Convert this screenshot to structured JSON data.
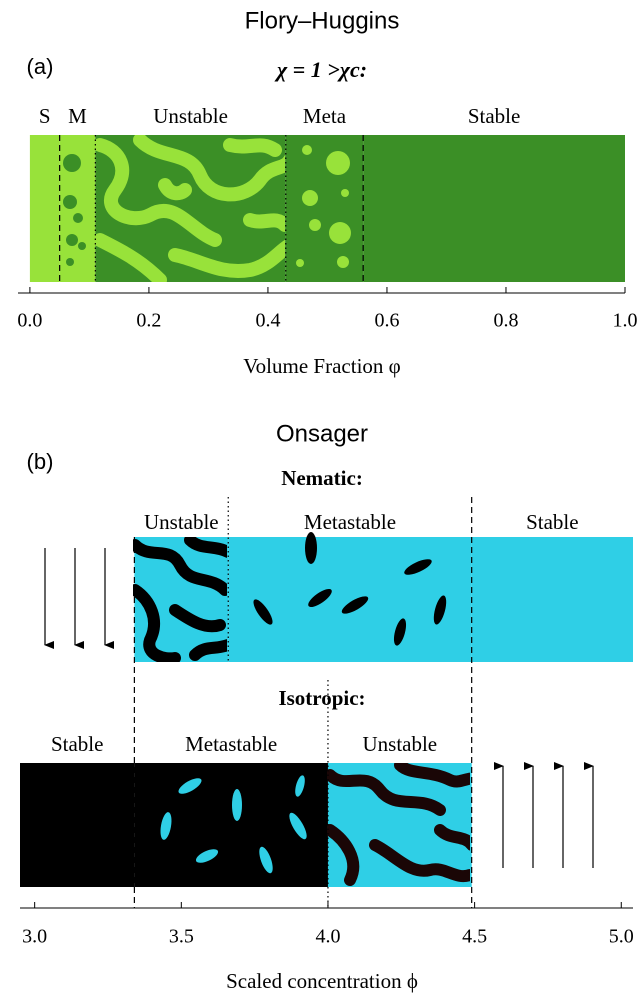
{
  "chart_data": [
    {
      "type": "phase",
      "title": "Flory–Huggins",
      "panel_label": "(a)",
      "subtitle": "χ = 1 >χc:",
      "x_label": "Volume Fraction φ",
      "xlim": [
        -0.02,
        1.0
      ],
      "xticks": [
        {
          "value": 0,
          "label": "0.0"
        },
        0.2,
        0.4,
        0.6,
        0.8,
        {
          "value": 1,
          "label": "1.0"
        }
      ],
      "rows": [
        {
          "regions": [
            {
              "label": "S",
              "range": [
                0,
                0.05
              ],
              "color": "#98e23a"
            },
            {
              "label": "M",
              "range": [
                0.05,
                0.11
              ],
              "color": "#98e23a"
            },
            {
              "label": "Unstable",
              "range": [
                0.11,
                0.43
              ],
              "color": "#3b8f26"
            },
            {
              "label": "Meta",
              "range": [
                0.43,
                0.56
              ],
              "color": "#3b8f26"
            },
            {
              "label": "Stable",
              "range": [
                0.56,
                1.0
              ],
              "color": "#3b8f26"
            }
          ]
        }
      ],
      "boundaries": [
        {
          "value": 0.05,
          "style": "dashed"
        },
        {
          "value": 0.11,
          "style": "dotted"
        },
        {
          "value": 0.43,
          "style": "dotted"
        },
        {
          "value": 0.56,
          "style": "dashed"
        }
      ]
    },
    {
      "type": "phase",
      "title": "Onsager",
      "panel_label": "(b)",
      "x_label": "Scaled concentration ϕ",
      "xlim": [
        2.95,
        5.04
      ],
      "xticks": [
        {
          "value": 3,
          "label": "3.0"
        },
        3.5,
        {
          "value": 4,
          "label": "4.0"
        },
        4.5,
        {
          "value": 5,
          "label": "5.0"
        }
      ],
      "rows": [
        {
          "name": "Nematic:",
          "regions": [
            {
              "label": "Unstable",
              "range": [
                3.34,
                3.66
              ],
              "color": "#2fcfe6"
            },
            {
              "label": "Metastable",
              "range": [
                3.66,
                4.49
              ],
              "color": "#2fcfe6"
            },
            {
              "label": "Stable",
              "range": [
                4.49,
                5.04
              ],
              "color": "#2fcfe6"
            }
          ]
        },
        {
          "name": "Isotropic:",
          "regions": [
            {
              "label": "Stable",
              "range": [
                2.95,
                3.34
              ],
              "color": "#000000"
            },
            {
              "label": "Metastable",
              "range": [
                3.34,
                4.0
              ],
              "color": "#000000"
            },
            {
              "label": "Unstable",
              "range": [
                4.0,
                4.49
              ],
              "color": "#2fcfe6"
            }
          ]
        }
      ],
      "boundaries": [
        {
          "value": 3.34,
          "style": "dashed"
        },
        {
          "value": 3.66,
          "style": "dotted"
        },
        {
          "value": 4.49,
          "style": "dashed"
        },
        {
          "value": 4.0,
          "style": "dotted"
        }
      ]
    }
  ]
}
